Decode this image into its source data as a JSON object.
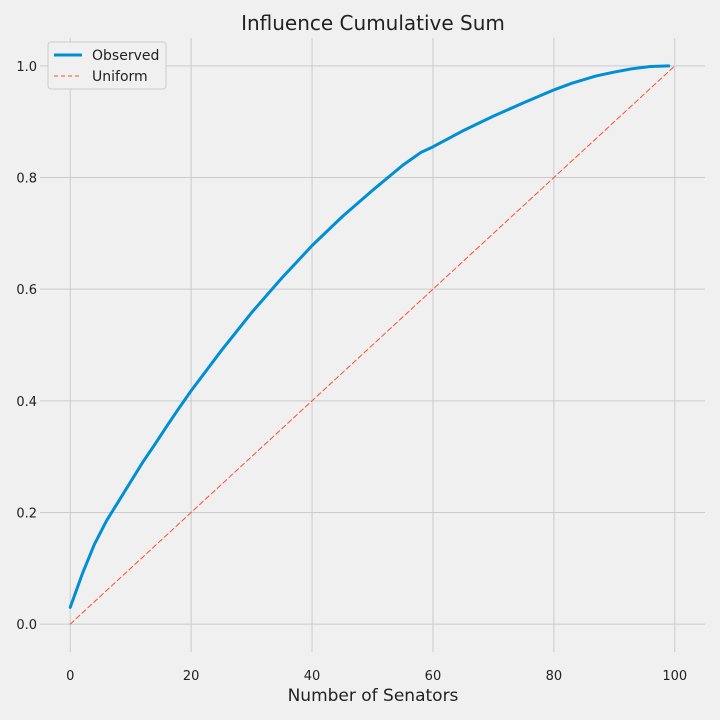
{
  "chart_data": {
    "type": "line",
    "title": "Influence Cumulative Sum",
    "xlabel": "Number of Senators",
    "ylabel": "",
    "xlim": [
      -5,
      105
    ],
    "ylim": [
      -0.05,
      1.05
    ],
    "xticks": [
      "0",
      "20",
      "40",
      "60",
      "80",
      "100"
    ],
    "yticks": [
      "0.0",
      "0.2",
      "0.4",
      "0.6",
      "0.8",
      "1.0"
    ],
    "grid": true,
    "legend_position": "top-left",
    "series": [
      {
        "name": "Observed",
        "style": "solid",
        "color": "#008fd5",
        "x": [
          0,
          2,
          4,
          6,
          8,
          10,
          12,
          14,
          16,
          18,
          20,
          25,
          30,
          35,
          40,
          45,
          50,
          55,
          58,
          60,
          65,
          70,
          75,
          80,
          83,
          87,
          90,
          93,
          96,
          99
        ],
        "y": [
          0.03,
          0.09,
          0.143,
          0.185,
          0.22,
          0.255,
          0.29,
          0.322,
          0.355,
          0.387,
          0.418,
          0.49,
          0.558,
          0.62,
          0.678,
          0.73,
          0.777,
          0.822,
          0.845,
          0.855,
          0.884,
          0.91,
          0.934,
          0.957,
          0.969,
          0.982,
          0.989,
          0.995,
          0.999,
          1.0
        ]
      },
      {
        "name": "Uniform",
        "style": "dashed",
        "color": "#fc4f30",
        "x": [
          0,
          100
        ],
        "y": [
          0.0,
          1.0
        ]
      }
    ]
  }
}
